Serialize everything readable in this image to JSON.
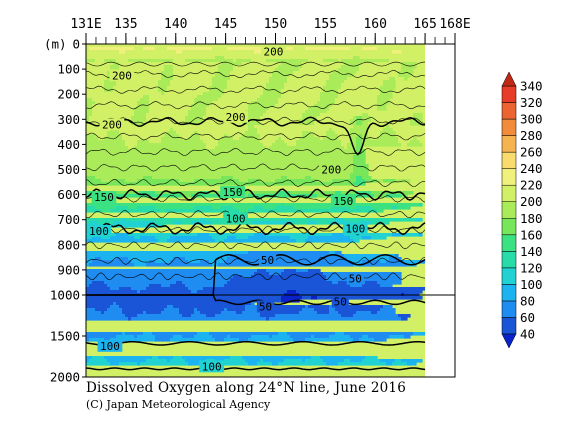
{
  "chart_data": {
    "type": "heatmap",
    "title": "Dissolved Oxygen along 24°N line, June 2016",
    "credit": "(C) Japan Meteorological Agency",
    "y_unit_label": "(m)",
    "x_ticks": [
      "131E",
      "135",
      "140",
      "145",
      "150",
      "155",
      "160",
      "165",
      "168E"
    ],
    "x_tick_values": [
      131,
      135,
      140,
      145,
      150,
      155,
      160,
      165,
      168
    ],
    "xlim": [
      131,
      168
    ],
    "data_extent_x": [
      131,
      165
    ],
    "y_ticks": [
      "0",
      "100",
      "200",
      "300",
      "400",
      "500",
      "600",
      "700",
      "800",
      "900",
      "1000",
      "1500",
      "2000"
    ],
    "y_tick_values": [
      0,
      100,
      200,
      300,
      400,
      500,
      600,
      700,
      800,
      900,
      1000,
      1500,
      2000
    ],
    "ylim": [
      0,
      2000
    ],
    "y_scale": "linear 0–1000 m (upper panel), compressed linear 1000–2000 m (lower panel)",
    "colorbar": {
      "levels": [
        40,
        60,
        80,
        100,
        120,
        140,
        160,
        180,
        200,
        220,
        240,
        260,
        280,
        300,
        320,
        340
      ],
      "labels": [
        "40",
        "60",
        "80",
        "100",
        "120",
        "140",
        "160",
        "180",
        "200",
        "220",
        "240",
        "260",
        "280",
        "300",
        "320",
        "340"
      ],
      "colors": [
        "#1a55d8",
        "#1e8cf0",
        "#1cb4f0",
        "#20d2d2",
        "#28dcaa",
        "#3ce182",
        "#78e65a",
        "#aaeb5a",
        "#d2f066",
        "#f0f07c",
        "#fadc6e",
        "#f5b450",
        "#f08c3c",
        "#eb6432",
        "#e63c28",
        "#d22814"
      ],
      "under_color": "#0a23c8",
      "over_color": "#be2814"
    },
    "contour_labels": [
      {
        "x": 149.8,
        "depth": 30,
        "text": "200"
      },
      {
        "x": 134.6,
        "depth": 125,
        "text": "200"
      },
      {
        "x": 133.6,
        "depth": 320,
        "text": "200"
      },
      {
        "x": 146.0,
        "depth": 290,
        "text": "200"
      },
      {
        "x": 155.6,
        "depth": 500,
        "text": "200"
      },
      {
        "x": 132.8,
        "depth": 610,
        "text": "150"
      },
      {
        "x": 145.7,
        "depth": 590,
        "text": "150"
      },
      {
        "x": 156.8,
        "depth": 625,
        "text": "150"
      },
      {
        "x": 132.3,
        "depth": 745,
        "text": "100"
      },
      {
        "x": 146.0,
        "depth": 695,
        "text": "100"
      },
      {
        "x": 158.0,
        "depth": 735,
        "text": "100"
      },
      {
        "x": 149.2,
        "depth": 860,
        "text": "50"
      },
      {
        "x": 158.0,
        "depth": 935,
        "text": "50"
      },
      {
        "x": 156.5,
        "depth": 1080,
        "text": "50"
      },
      {
        "x": 149.0,
        "depth": 1140,
        "text": "50"
      },
      {
        "x": 133.4,
        "depth": 1620,
        "text": "100"
      },
      {
        "x": 143.6,
        "depth": 1870,
        "text": "100"
      }
    ]
  }
}
